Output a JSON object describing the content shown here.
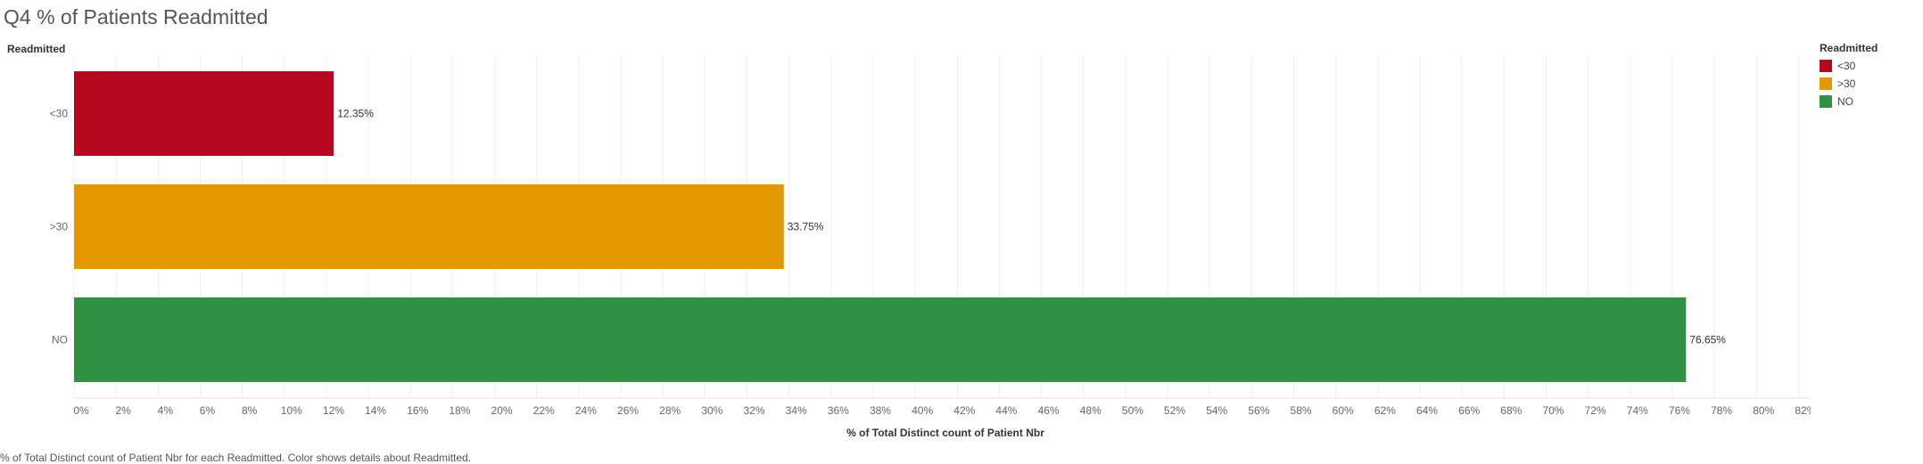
{
  "chart_data": {
    "type": "bar",
    "orientation": "horizontal",
    "title": "Q4 % of Patients Readmitted",
    "row_header": "Readmitted",
    "categories": [
      "<30",
      ">30",
      "NO"
    ],
    "values": [
      12.35,
      33.75,
      76.65
    ],
    "value_labels": [
      "12.35%",
      "33.75%",
      "76.65%"
    ],
    "colors": [
      "#b5081e",
      "#e39800",
      "#2f9141"
    ],
    "xlabel": "% of Total Distinct count of Patient Nbr",
    "xlim": [
      0,
      82
    ],
    "xticks": [
      "0%",
      "2%",
      "4%",
      "6%",
      "8%",
      "10%",
      "12%",
      "14%",
      "16%",
      "18%",
      "20%",
      "22%",
      "24%",
      "26%",
      "28%",
      "30%",
      "32%",
      "34%",
      "36%",
      "38%",
      "40%",
      "42%",
      "44%",
      "46%",
      "48%",
      "50%",
      "52%",
      "54%",
      "56%",
      "58%",
      "60%",
      "62%",
      "64%",
      "66%",
      "68%",
      "70%",
      "72%",
      "74%",
      "76%",
      "78%",
      "80%",
      "82%"
    ],
    "grid": true,
    "legend": {
      "title": "Readmitted",
      "placement": "top-right",
      "items": [
        {
          "label": "<30",
          "color": "#b5081e"
        },
        {
          "label": ">30",
          "color": "#e39800"
        },
        {
          "label": "NO",
          "color": "#2f9141"
        }
      ]
    },
    "footer": "% of Total Distinct count of Patient Nbr for each Readmitted.  Color shows details about Readmitted."
  }
}
